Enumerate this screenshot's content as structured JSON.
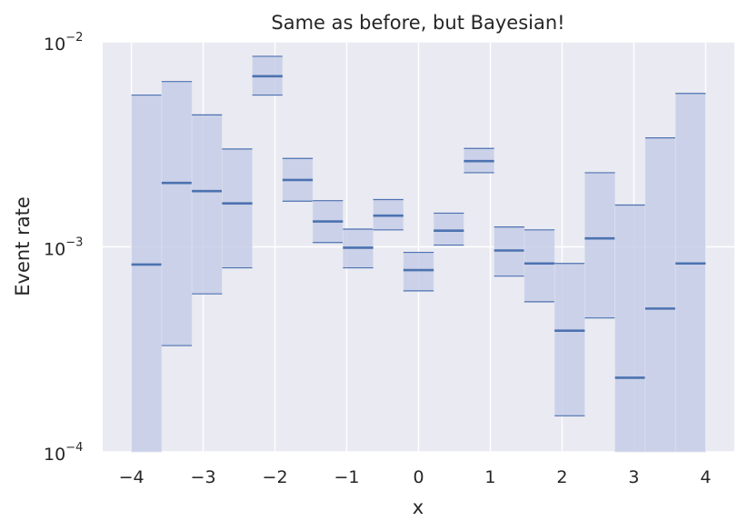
{
  "chart_data": {
    "type": "bar",
    "title": "Same as before, but Bayesian!",
    "xlabel": "x",
    "ylabel": "Event rate",
    "xlim": [
      -4.4,
      4.4
    ],
    "ylim": [
      0.0001,
      0.01
    ],
    "yscale": "log",
    "grid": true,
    "x_ticks": [
      -4,
      -3,
      -2,
      -1,
      0,
      1,
      2,
      3,
      4
    ],
    "x_tick_labels": [
      "−4",
      "−3",
      "−2",
      "−1",
      "0",
      "1",
      "2",
      "3",
      "4"
    ],
    "y_ticks": [
      {
        "value": 0.0001,
        "base": "10",
        "exp": "−4"
      },
      {
        "value": 0.001,
        "base": "10",
        "exp": "−3"
      },
      {
        "value": 0.01,
        "base": "10",
        "exp": "−2"
      }
    ],
    "bin_edges": [
      -4.0,
      -3.579,
      -3.158,
      -2.737,
      -2.316,
      -1.895,
      -1.474,
      -1.053,
      -0.632,
      -0.211,
      0.211,
      0.632,
      1.053,
      1.474,
      1.895,
      2.316,
      2.737,
      3.158,
      3.579,
      4.0
    ],
    "series": [
      {
        "rate": [
          0.00082,
          0.00205,
          0.00187,
          0.00163,
          0.0068,
          0.00212,
          0.00133,
          0.00099,
          0.00142,
          0.00077,
          0.0012,
          0.00262,
          0.00096,
          0.00083,
          0.00039,
          0.0011,
          0.00023,
          0.0005,
          0.00083
        ],
        "lower": [
          5e-05,
          0.00033,
          0.00059,
          0.00079,
          0.0055,
          0.00167,
          0.00105,
          0.00079,
          0.00121,
          0.00061,
          0.00102,
          0.0023,
          0.00072,
          0.00054,
          0.00015,
          0.00045,
          5e-05,
          5e-05,
          5e-05
        ],
        "upper": [
          0.0055,
          0.0064,
          0.0044,
          0.003,
          0.0085,
          0.0027,
          0.00168,
          0.00122,
          0.0017,
          0.00094,
          0.00146,
          0.00302,
          0.00125,
          0.00121,
          0.00083,
          0.0023,
          0.0016,
          0.0034,
          0.0056
        ]
      }
    ],
    "colors": {
      "band": "#c5cde6",
      "line": "#4c72b0",
      "background": "#eaeaf2",
      "grid": "#ffffff"
    }
  }
}
